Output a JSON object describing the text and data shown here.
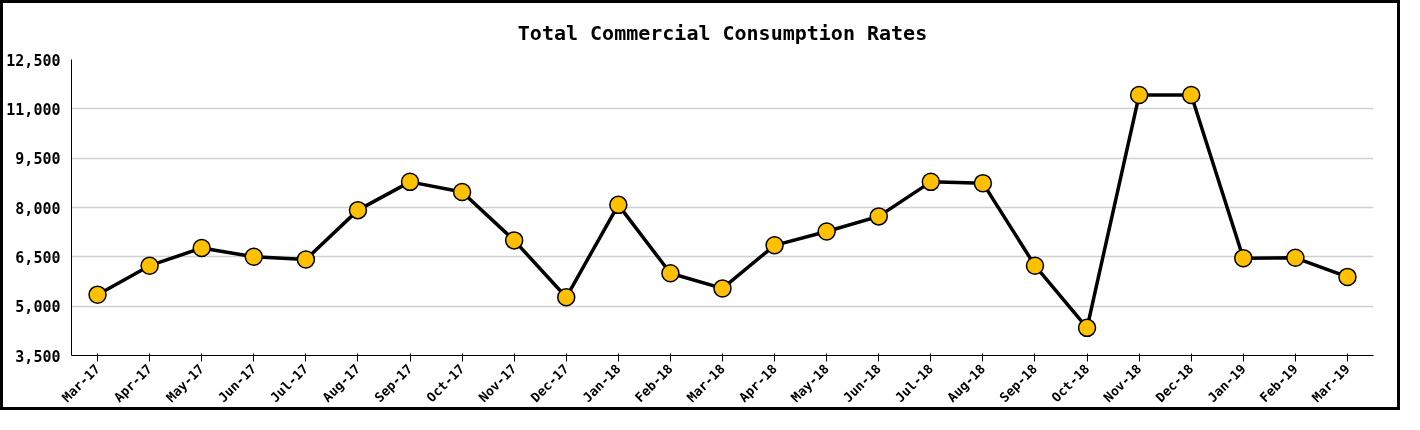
{
  "chart_data": {
    "type": "line",
    "title": "Total Commercial Consumption Rates",
    "categories": [
      "Mar-17",
      "Apr-17",
      "May-17",
      "Jun-17",
      "Jul-17",
      "Aug-17",
      "Sep-17",
      "Oct-17",
      "Nov-17",
      "Dec-17",
      "Jan-18",
      "Feb-18",
      "Mar-18",
      "Apr-18",
      "May-18",
      "Jun-18",
      "Jul-18",
      "Aug-18",
      "Sep-18",
      "Oct-18",
      "Nov-18",
      "Dec-18",
      "Jan-19",
      "Feb-19",
      "Mar-19"
    ],
    "series": [
      {
        "color": "#ffc000",
        "values": [
          5350,
          6230,
          6770,
          6500,
          6420,
          7920,
          8780,
          8470,
          7000,
          5270,
          8080,
          6000,
          5540,
          6850,
          7270,
          7730,
          8780,
          8740,
          6230,
          4340,
          11420,
          11420,
          6460,
          6470,
          5890
        ]
      }
    ],
    "ylim": [
      3500,
      12500
    ],
    "yticks": [
      {
        "value": 3500,
        "label": "3,500"
      },
      {
        "value": 5000,
        "label": "5,000"
      },
      {
        "value": 6500,
        "label": "6,500"
      },
      {
        "value": 8000,
        "label": "8,000"
      },
      {
        "value": 9500,
        "label": "9,500"
      },
      {
        "value": 11000,
        "label": "11,000"
      },
      {
        "value": 12500,
        "label": "12,500"
      }
    ],
    "grid": "y",
    "marker": "circle",
    "line_style": "solid"
  }
}
